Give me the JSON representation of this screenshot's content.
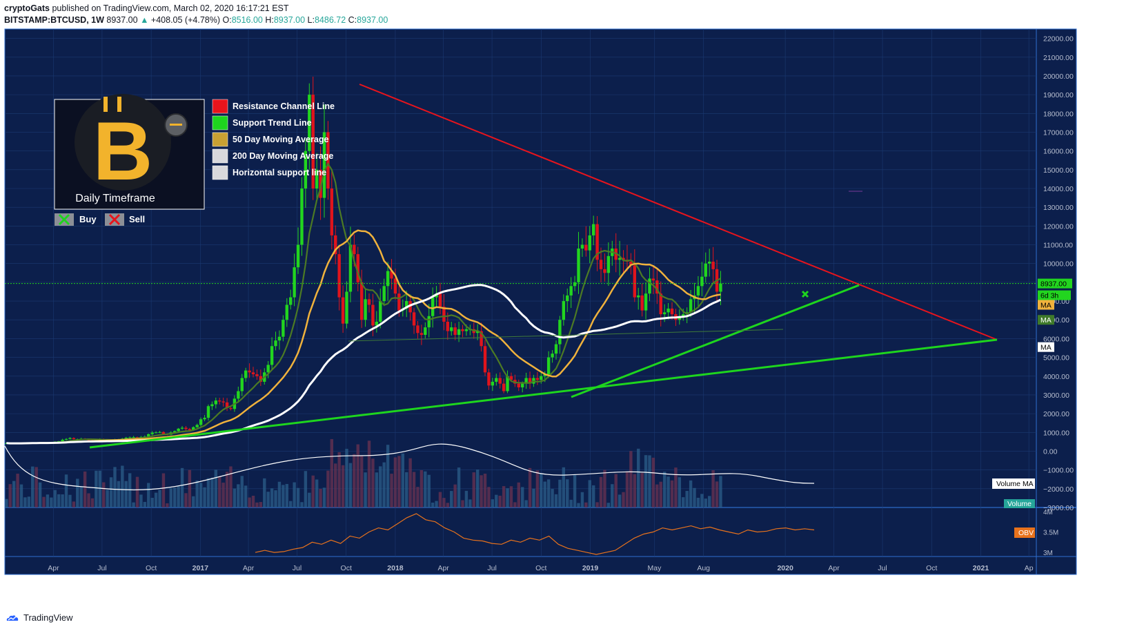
{
  "header": {
    "author": "cryptoGats",
    "published_text": "published on TradingView.com, March 02, 2020 16:17:21 EST",
    "symbol": "BITSTAMP:BTCUSD, 1W",
    "last": "8937.00",
    "change_arrow": "▲",
    "change": "+408.05 (+4.78%)",
    "open_label": "O:",
    "open": "8516.00",
    "high_label": "H:",
    "high": "8937.00",
    "low_label": "L:",
    "low": "8486.72",
    "close_label": "C:",
    "close": "8937.00"
  },
  "legend_box": {
    "logo_letter": "B",
    "timeframe": "Daily Timeframe",
    "buy_label": "Buy",
    "sell_label": "Sell"
  },
  "legend_items": [
    {
      "label": "Resistance Channel Line",
      "color": "#e8141c"
    },
    {
      "label": "Support Trend Line",
      "color": "#1ed51e"
    },
    {
      "label": "50 Day Moving Average",
      "color": "#c9a133"
    },
    {
      "label": "200 Day Moving Average",
      "color": "#d8d8dc"
    },
    {
      "label": "Horizontal support line",
      "color": "#d8d8dc"
    }
  ],
  "price_tags": {
    "last_price": "8937.00",
    "countdown": "6d 3h",
    "ma_50": "MA",
    "ma_green": "MA",
    "ma_200": "MA",
    "volume_ma": "Volume MA",
    "volume": "Volume",
    "obv": "OBV"
  },
  "footer": {
    "brand": "TradingView"
  },
  "colors": {
    "background": "#0c1f4c",
    "grid": "#1b3a72",
    "up": "#22d51f",
    "down": "#e0141c",
    "axis_text": "#b8bfd0"
  },
  "chart_data": {
    "type": "candlestick",
    "title": "",
    "x_tick_labels": [
      "Apr",
      "Jul",
      "Oct",
      "2017",
      "Apr",
      "Jul",
      "Oct",
      "2018",
      "Apr",
      "Jul",
      "Oct",
      "2019",
      "May",
      "Aug",
      "2020",
      "Apr",
      "Jul",
      "Oct",
      "2021",
      "Ap"
    ],
    "y_tick_labels": [
      "22000.00",
      "21000.00",
      "20000.00",
      "19000.00",
      "18000.00",
      "17000.00",
      "16000.00",
      "15000.00",
      "14000.00",
      "13000.00",
      "12000.00",
      "11000.00",
      "10000.00",
      "9000.00",
      "8000.00",
      "7000.00",
      "6000.00",
      "5000.00",
      "4000.00",
      "3000.00",
      "2000.00",
      "1000.00",
      "0.00",
      "−1000.00",
      "−2000.00",
      "−3000.00"
    ],
    "ylim": [
      -3000,
      22500
    ],
    "obv_tick_labels": [
      "4M",
      "3.5M",
      "3M"
    ],
    "obv_ylim": [
      2.9,
      4.1
    ],
    "date_range": [
      "2016-01-01",
      "2021-04-15"
    ],
    "weekly_closes": [
      430,
      410,
      420,
      415,
      425,
      440,
      450,
      455,
      450,
      460,
      448,
      455,
      470,
      500,
      530,
      610,
      650,
      700,
      640,
      640,
      660,
      620,
      590,
      580,
      600,
      630,
      585,
      600,
      610,
      615,
      640,
      670,
      720,
      740,
      750,
      730,
      760,
      780,
      910,
      990,
      1000,
      1020,
      920,
      880,
      1000,
      1070,
      1200,
      1250,
      1180,
      1120,
      1280,
      1400,
      1700,
      1780,
      2400,
      2500,
      2700,
      2650,
      2600,
      2300,
      2250,
      2800,
      3200,
      3900,
      4300,
      4200,
      4100,
      4000,
      3700,
      4200,
      4600,
      5600,
      5900,
      6100,
      7000,
      7800,
      8200,
      9800,
      11000,
      14000,
      16000,
      19000,
      14000,
      15000,
      13500,
      17000,
      14000,
      11500,
      10500,
      8200,
      6800,
      8500,
      11000,
      10500,
      9000,
      7000,
      8100,
      7800,
      6700,
      6900,
      8000,
      8800,
      9600,
      9200,
      8400,
      7500,
      7600,
      8000,
      7400,
      6700,
      6300,
      6200,
      6600,
      7200,
      8200,
      8400,
      7700,
      6900,
      6400,
      6600,
      6200,
      6500,
      6400,
      6500,
      6500,
      6300,
      6400,
      5600,
      4200,
      3500,
      3700,
      3900,
      3600,
      3200,
      4000,
      3800,
      3600,
      3400,
      3600,
      3900,
      3600,
      3900,
      3800,
      4000,
      4100,
      5000,
      5200,
      5700,
      7000,
      8000,
      8300,
      8800,
      9000,
      10800,
      11000,
      10700,
      11500,
      12100,
      10200,
      9700,
      9500,
      10400,
      10800,
      10200,
      10300,
      10200,
      10100,
      9900,
      8200,
      8300,
      7500,
      8400,
      9200,
      9100,
      8400,
      7300,
      7400,
      7600,
      7300,
      7000,
      7200,
      7300,
      7400,
      8100,
      8300,
      8800,
      9300,
      10000,
      10100,
      9700,
      8500,
      8937
    ],
    "ma50": [
      0,
      0,
      0,
      0,
      0,
      0,
      0,
      0,
      0,
      0,
      0,
      0,
      0,
      0,
      0,
      0,
      0,
      0,
      0,
      0,
      0,
      0,
      0,
      0,
      0,
      0,
      0,
      0,
      0,
      0,
      0,
      0,
      0,
      0,
      0,
      0,
      0,
      0,
      0,
      0,
      0,
      0,
      0,
      0,
      0,
      0,
      0,
      0,
      0,
      0,
      0,
      0,
      0,
      0,
      0,
      0,
      0,
      0,
      0,
      0,
      0,
      0,
      0,
      0,
      0,
      0,
      0,
      0,
      0,
      0,
      0,
      0,
      0,
      0,
      0,
      0,
      0,
      0,
      0,
      0,
      0,
      0,
      0,
      0,
      0,
      0,
      0,
      0,
      0,
      0,
      0,
      0,
      0,
      0,
      0,
      0,
      0,
      0,
      0,
      0,
      0,
      0,
      0,
      0,
      0,
      0,
      0,
      0,
      0,
      0,
      0,
      0,
      0,
      0,
      0,
      0,
      0,
      0,
      0,
      0,
      0,
      0,
      0,
      0,
      0,
      0,
      0,
      0,
      0,
      0,
      0,
      0,
      0,
      0,
      0,
      0,
      0,
      0,
      0,
      0,
      0,
      0,
      0,
      0,
      0,
      0,
      0,
      0,
      0,
      0,
      0,
      0,
      0,
      0,
      0,
      0,
      0,
      0,
      0,
      0,
      0,
      0,
      0,
      0,
      0,
      0,
      0,
      0,
      0,
      0,
      0,
      0,
      0,
      0,
      0,
      0,
      0,
      0,
      0,
      0,
      0,
      0,
      0,
      0,
      0,
      0,
      0,
      0,
      0,
      0,
      0,
      0,
      0,
      0,
      0,
      0,
      0
    ],
    "obv": [
      3.0,
      3.05,
      3.0,
      3.02,
      3.08,
      3.12,
      3.25,
      3.2,
      3.3,
      3.22,
      3.4,
      3.35,
      3.5,
      3.6,
      3.55,
      3.7,
      3.85,
      3.95,
      3.8,
      3.75,
      3.6,
      3.5,
      3.35,
      3.3,
      3.28,
      3.22,
      3.2,
      3.3,
      3.25,
      3.35,
      3.3,
      3.4,
      3.2,
      3.1,
      3.05,
      3.0,
      2.95,
      3.0,
      3.05,
      3.2,
      3.35,
      3.45,
      3.5,
      3.6,
      3.55,
      3.6,
      3.65,
      3.58,
      3.62,
      3.55,
      3.5,
      3.45,
      3.55,
      3.5,
      3.52,
      3.58,
      3.6,
      3.55,
      3.58,
      3.55
    ],
    "volume_ma_axis_values": []
  }
}
